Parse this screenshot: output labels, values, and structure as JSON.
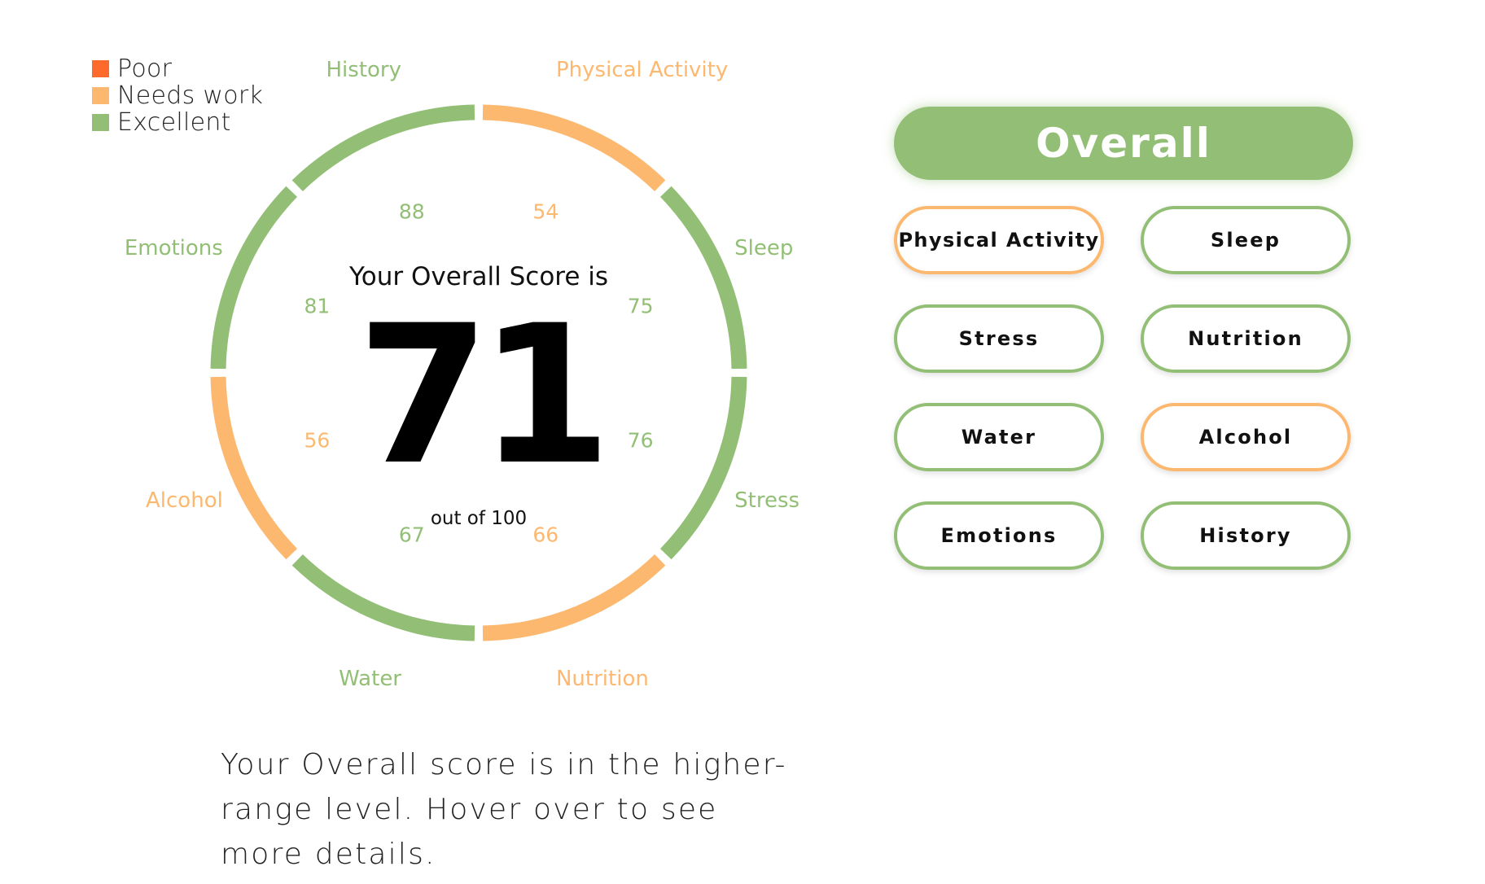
{
  "legend": [
    {
      "label": "Poor",
      "color": "#fd6a2b"
    },
    {
      "label": "Needs work",
      "color": "#fdb870"
    },
    {
      "label": "Excellent",
      "color": "#92bf75"
    }
  ],
  "colors": {
    "excellent": "#92bf75",
    "needs_work": "#fdb870",
    "poor": "#fd6a2b"
  },
  "dial": {
    "title": "Your Overall Score is",
    "score": "71",
    "subtitle": "out of 100",
    "segments": [
      {
        "name": "Physical Activity",
        "score": 54,
        "rating": "needs_work"
      },
      {
        "name": "Sleep",
        "score": 75,
        "rating": "excellent"
      },
      {
        "name": "Stress",
        "score": 76,
        "rating": "excellent"
      },
      {
        "name": "Nutrition",
        "score": 66,
        "rating": "needs_work"
      },
      {
        "name": "Water",
        "score": 67,
        "rating": "excellent"
      },
      {
        "name": "Alcohol",
        "score": 56,
        "rating": "needs_work"
      },
      {
        "name": "Emotions",
        "score": 81,
        "rating": "excellent"
      },
      {
        "name": "History",
        "score": 88,
        "rating": "excellent"
      }
    ]
  },
  "description": "Your Overall score is in the higher-range level. Hover over to see more details.",
  "buttons": {
    "overall": "Overall",
    "physical_activity": "Physical Activity",
    "sleep": "Sleep",
    "stress": "Stress",
    "nutrition": "Nutrition",
    "water": "Water",
    "alcohol": "Alcohol",
    "emotions": "Emotions",
    "history": "History"
  }
}
